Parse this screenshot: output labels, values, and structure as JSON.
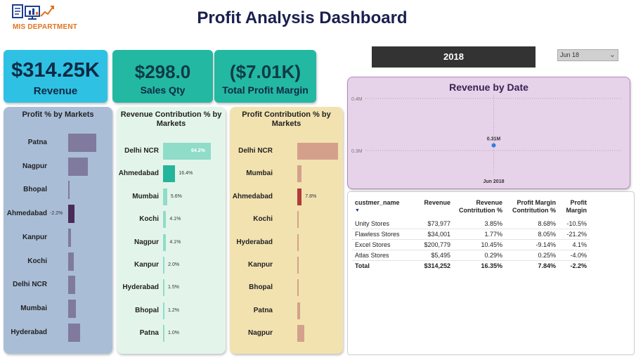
{
  "header": {
    "title": "Profit Analysis Dashboard",
    "logo_text": "MIS DEPARTMENT"
  },
  "kpis": {
    "revenue": {
      "value": "$314.25K",
      "label": "Revenue"
    },
    "sales_qty": {
      "value": "$298.0",
      "label": "Sales Qty"
    },
    "profit_margin": {
      "value": "($7.01K)",
      "label": "Total Profit Margin"
    }
  },
  "year_card": {
    "value": "2018"
  },
  "slicer": {
    "value": "Jun 18"
  },
  "colors": {
    "revenue_card": "#2ec1e3",
    "qty_card": "#23b8a2",
    "profit_panel": "#a9bdd7",
    "profit_bar": "#7f7a9e",
    "profit_bar_neg": "#4a2a5a",
    "rev_panel": "#e3f5ea",
    "rev_bar": "#8fdcc9",
    "rev_bar_highlight": "#25b59a",
    "pc_panel": "#f2e2b0",
    "pc_bar": "#d4a08c",
    "pc_bar_highlight": "#b13a3a",
    "date_panel": "#e6d2e9",
    "date_point": "#2e7fe0"
  },
  "chart_data": [
    {
      "type": "bar",
      "orientation": "horizontal",
      "title": "Profit % by Markets",
      "categories": [
        "Patna",
        "Nagpur",
        "Bhopal",
        "Ahmedabad",
        "Kanpur",
        "Kochi",
        "Delhi NCR",
        "Mumbai",
        "Hyderabad"
      ],
      "values": [
        -10.0,
        -7.0,
        -0.5,
        -2.2,
        -1.0,
        -2.0,
        -2.5,
        -2.8,
        -4.2
      ],
      "data_labels": {
        "Ahmedabad": "-2.2%"
      }
    },
    {
      "type": "bar",
      "orientation": "horizontal",
      "title": "Revenue Contribution % by Markets",
      "categories": [
        "Delhi NCR",
        "Ahmedabad",
        "Mumbai",
        "Kochi",
        "Nagpur",
        "Kanpur",
        "Hyderabad",
        "Bhopal",
        "Patna"
      ],
      "values": [
        64.2,
        16.4,
        5.6,
        4.1,
        4.1,
        2.0,
        1.5,
        1.2,
        1.0
      ],
      "data_labels": [
        "64.2%",
        "16.4%",
        "5.6%",
        "4.1%",
        "4.1%",
        "2.0%",
        "1.5%",
        "1.2%",
        "1.0%"
      ]
    },
    {
      "type": "bar",
      "orientation": "horizontal",
      "title": "Profit Contribution % by Markets",
      "categories": [
        "Delhi NCR",
        "Mumbai",
        "Ahmedabad",
        "Kochi",
        "Hyderabad",
        "Kanpur",
        "Bhopal",
        "Patna",
        "Nagpur"
      ],
      "values": [
        72.0,
        7.0,
        7.8,
        3.0,
        2.0,
        0.6,
        1.0,
        4.5,
        13.0
      ],
      "data_labels": {
        "Ahmedabad": "7.8%"
      }
    },
    {
      "type": "scatter",
      "title": "Revenue by Date",
      "x": [
        "Jun 2018"
      ],
      "y": [
        0.31
      ],
      "y_ticks": [
        "0.4M",
        "0.3M"
      ],
      "ylim": [
        0.28,
        0.42
      ],
      "point_labels": [
        "0.31M"
      ],
      "x_tick_labels": [
        "Jun 2018"
      ]
    }
  ],
  "table": {
    "columns": [
      "custmer_name",
      "Revenue",
      "Revenue Contritution %",
      "Profit Margin Contritution %",
      "Profit Margin"
    ],
    "column_lines": [
      [
        "custmer_name"
      ],
      [
        "Revenue"
      ],
      [
        "Revenue",
        "Contritution %"
      ],
      [
        "Profit Margin",
        "Contritution %"
      ],
      [
        "Profit",
        "Margin"
      ]
    ],
    "rows": [
      [
        "Unity Stores",
        "$73,977",
        "3.85%",
        "8.68%",
        "-10.5%"
      ],
      [
        "Flawless Stores",
        "$34,001",
        "1.77%",
        "8.05%",
        "-21.2%"
      ],
      [
        "Excel Stores",
        "$200,779",
        "10.45%",
        "-9.14%",
        "4.1%"
      ],
      [
        "Atlas Stores",
        "$5,495",
        "0.29%",
        "0.25%",
        "-4.0%"
      ]
    ],
    "total": [
      "Total",
      "$314,252",
      "16.35%",
      "7.84%",
      "-2.2%"
    ],
    "sort_indicator": "▼"
  }
}
